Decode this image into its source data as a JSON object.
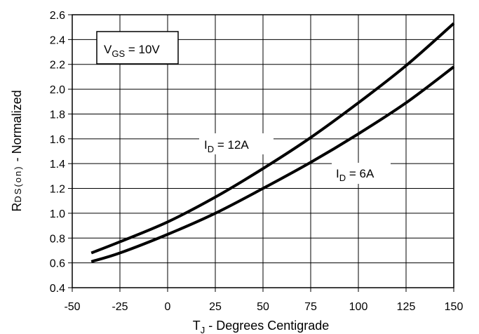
{
  "chart_data": {
    "type": "line",
    "xlabel": {
      "main": "T",
      "sub": "J",
      "rest": " - Degrees Centigrade"
    },
    "ylabel": {
      "main": "R",
      "sub": "DS(on)",
      "rest": " - Normalized"
    },
    "xlim": [
      -50,
      150
    ],
    "ylim": [
      0.4,
      2.6
    ],
    "xticks": [
      -50,
      -25,
      0,
      25,
      50,
      75,
      100,
      125,
      150
    ],
    "yticks": [
      0.4,
      0.6,
      0.8,
      1.0,
      1.2,
      1.4,
      1.6,
      1.8,
      2.0,
      2.2,
      2.4,
      2.6
    ],
    "grid": true,
    "series": [
      {
        "name": "I_D = 12A",
        "label": {
          "main": "I",
          "sub": "D",
          "rest": " = 12A"
        },
        "x": [
          -40,
          -25,
          0,
          25,
          50,
          75,
          100,
          125,
          150
        ],
        "y": [
          0.68,
          0.77,
          0.93,
          1.13,
          1.36,
          1.61,
          1.89,
          2.19,
          2.53
        ]
      },
      {
        "name": "I_D = 6A",
        "label": {
          "main": "I",
          "sub": "D",
          "rest": " = 6A"
        },
        "x": [
          -40,
          -25,
          0,
          25,
          50,
          75,
          100,
          125,
          150
        ],
        "y": [
          0.61,
          0.68,
          0.83,
          1.0,
          1.2,
          1.41,
          1.64,
          1.89,
          2.18
        ]
      }
    ],
    "annotation": {
      "main": "V",
      "sub": "GS",
      "rest": " = 10V"
    }
  }
}
